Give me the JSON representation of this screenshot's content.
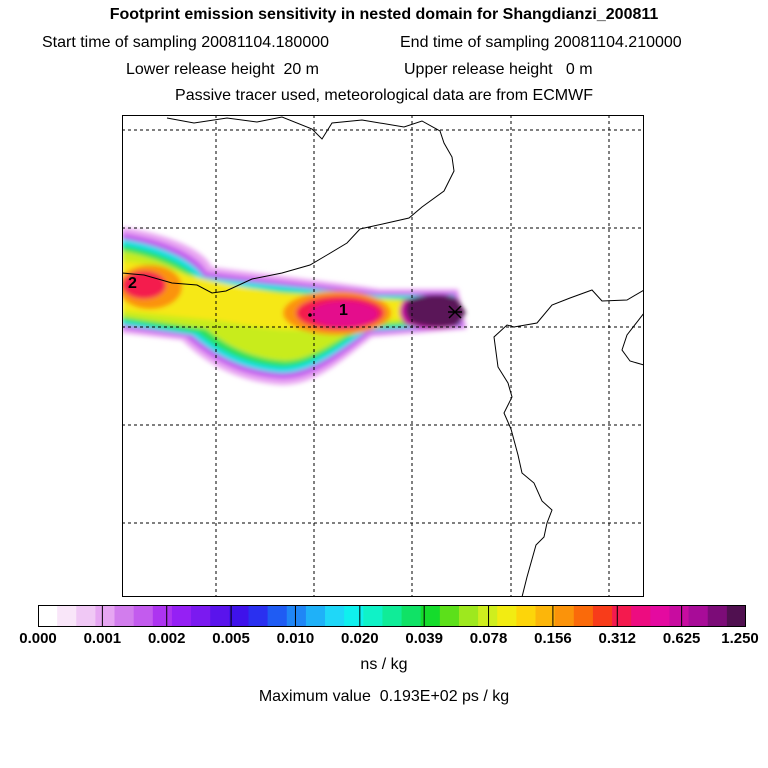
{
  "header": {
    "title": "Footprint emission sensitivity in nested domain for Shangdianzi_200811",
    "start_label": "Start time of sampling",
    "start_value": "20081104.180000",
    "end_label": "End time of sampling",
    "end_value": "20081104.210000",
    "lower_label": "Lower release height",
    "lower_value": "20 m",
    "upper_label": "Upper release height",
    "upper_value": "0 m",
    "note": "Passive tracer used, meteorological data are from ECMWF"
  },
  "map": {
    "labels": [
      {
        "name": "map-label-2",
        "text": "2"
      },
      {
        "name": "map-label-1",
        "text": "1"
      }
    ],
    "station_marker": "x-cross-icon"
  },
  "colorbar": {
    "ticks": [
      "0.000",
      "0.001",
      "0.002",
      "0.005",
      "0.010",
      "0.020",
      "0.039",
      "0.078",
      "0.156",
      "0.312",
      "0.625",
      "1.250"
    ],
    "colors": [
      "#ffffff",
      "#f9e6f9",
      "#f0c8f5",
      "#e6a6f2",
      "#d27ded",
      "#c35bee",
      "#ad34f0",
      "#9520f4",
      "#7b1af0",
      "#5a14ec",
      "#3f12ea",
      "#2a30f0",
      "#1f5cf3",
      "#1f86f6",
      "#1fb1f8",
      "#1fd7f8",
      "#0ff0ee",
      "#10f2c7",
      "#10ec98",
      "#10e266",
      "#15dc2c",
      "#5ce01a",
      "#9ee81e",
      "#cfee1e",
      "#f2ec12",
      "#fdd50a",
      "#fcb60a",
      "#fb930a",
      "#fa6a0a",
      "#f83c1a",
      "#f41a4e",
      "#ed0c80",
      "#e40aa0",
      "#c80ca0",
      "#a80c98",
      "#7c0c78",
      "#501050"
    ],
    "unit": "ns / kg",
    "max_label": "Maximum value",
    "max_value": "0.193E+02 ps / kg"
  },
  "colors": {
    "frame": "#000000",
    "grid": "#000000"
  }
}
